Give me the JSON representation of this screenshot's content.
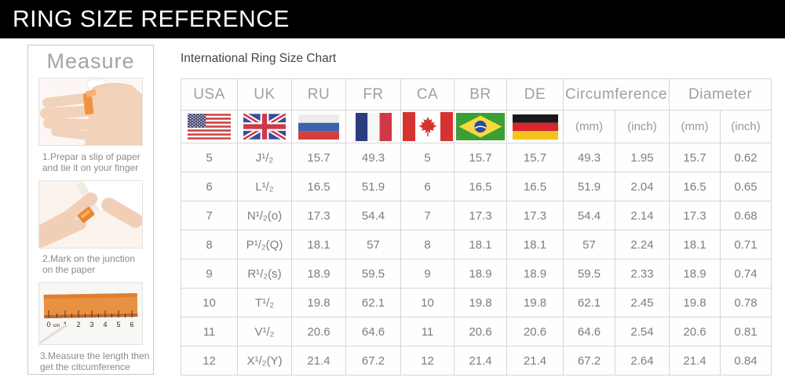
{
  "banner": {
    "title": "RING SIZE REFERENCE"
  },
  "sidebar": {
    "title": "Measure",
    "steps": [
      {
        "image": "hand-with-paper-strip-photo",
        "caption": "1.Prepar a slip of paper and tie it on your finger"
      },
      {
        "image": "mark-junction-photo",
        "caption": "2.Mark on the junction on the paper"
      },
      {
        "image": "ruler-measure-photo",
        "caption": "3.Measure the length then get the citcumference"
      }
    ],
    "ruler_labels": [
      "0",
      "cm",
      "1",
      "2",
      "3",
      "4",
      "5",
      "6"
    ]
  },
  "table": {
    "country_columns": [
      {
        "code": "USA",
        "flag": "usa-flag"
      },
      {
        "code": "UK",
        "flag": "uk-flag"
      },
      {
        "code": "RU",
        "flag": "russia-flag"
      },
      {
        "code": "FR",
        "flag": "france-flag"
      },
      {
        "code": "CA",
        "flag": "canada-flag"
      },
      {
        "code": "BR",
        "flag": "brazil-flag"
      },
      {
        "code": "DE",
        "flag": "germany-flag"
      }
    ],
    "measure_groups": [
      {
        "label": "Circumference",
        "units": [
          "(mm)",
          "(inch)"
        ]
      },
      {
        "label": "Diameter",
        "units": [
          "(mm)",
          "(inch)"
        ]
      }
    ]
  },
  "chart_data": {
    "type": "table",
    "title": "International Ring Size Chart",
    "columns": [
      "USA",
      "UK",
      "RU",
      "FR",
      "CA",
      "BR",
      "DE",
      "Circumference (mm)",
      "Circumference (inch)",
      "Diameter (mm)",
      "Diameter (inch)"
    ],
    "rows": [
      [
        "5",
        "J¹/₂",
        "15.7",
        "49.3",
        "5",
        "15.7",
        "15.7",
        "49.3",
        "1.95",
        "15.7",
        "0.62"
      ],
      [
        "6",
        "L¹/₂",
        "16.5",
        "51.9",
        "6",
        "16.5",
        "16.5",
        "51.9",
        "2.04",
        "16.5",
        "0.65"
      ],
      [
        "7",
        "N¹/₂(o)",
        "17.3",
        "54.4",
        "7",
        "17.3",
        "17.3",
        "54.4",
        "2.14",
        "17.3",
        "0.68"
      ],
      [
        "8",
        "P¹/₂(Q)",
        "18.1",
        "57",
        "8",
        "18.1",
        "18.1",
        "57",
        "2.24",
        "18.1",
        "0.71"
      ],
      [
        "9",
        "R¹/₂(s)",
        "18.9",
        "59.5",
        "9",
        "18.9",
        "18.9",
        "59.5",
        "2.33",
        "18.9",
        "0.74"
      ],
      [
        "10",
        "T¹/₂",
        "19.8",
        "62.1",
        "10",
        "19.8",
        "19.8",
        "62.1",
        "2.45",
        "19.8",
        "0.78"
      ],
      [
        "11",
        "V¹/₂",
        "20.6",
        "64.6",
        "11",
        "20.6",
        "20.6",
        "64.6",
        "2.54",
        "20.6",
        "0.81"
      ],
      [
        "12",
        "X¹/₂(Y)",
        "21.4",
        "67.2",
        "12",
        "21.4",
        "21.4",
        "67.2",
        "2.64",
        "21.4",
        "0.84"
      ]
    ]
  }
}
